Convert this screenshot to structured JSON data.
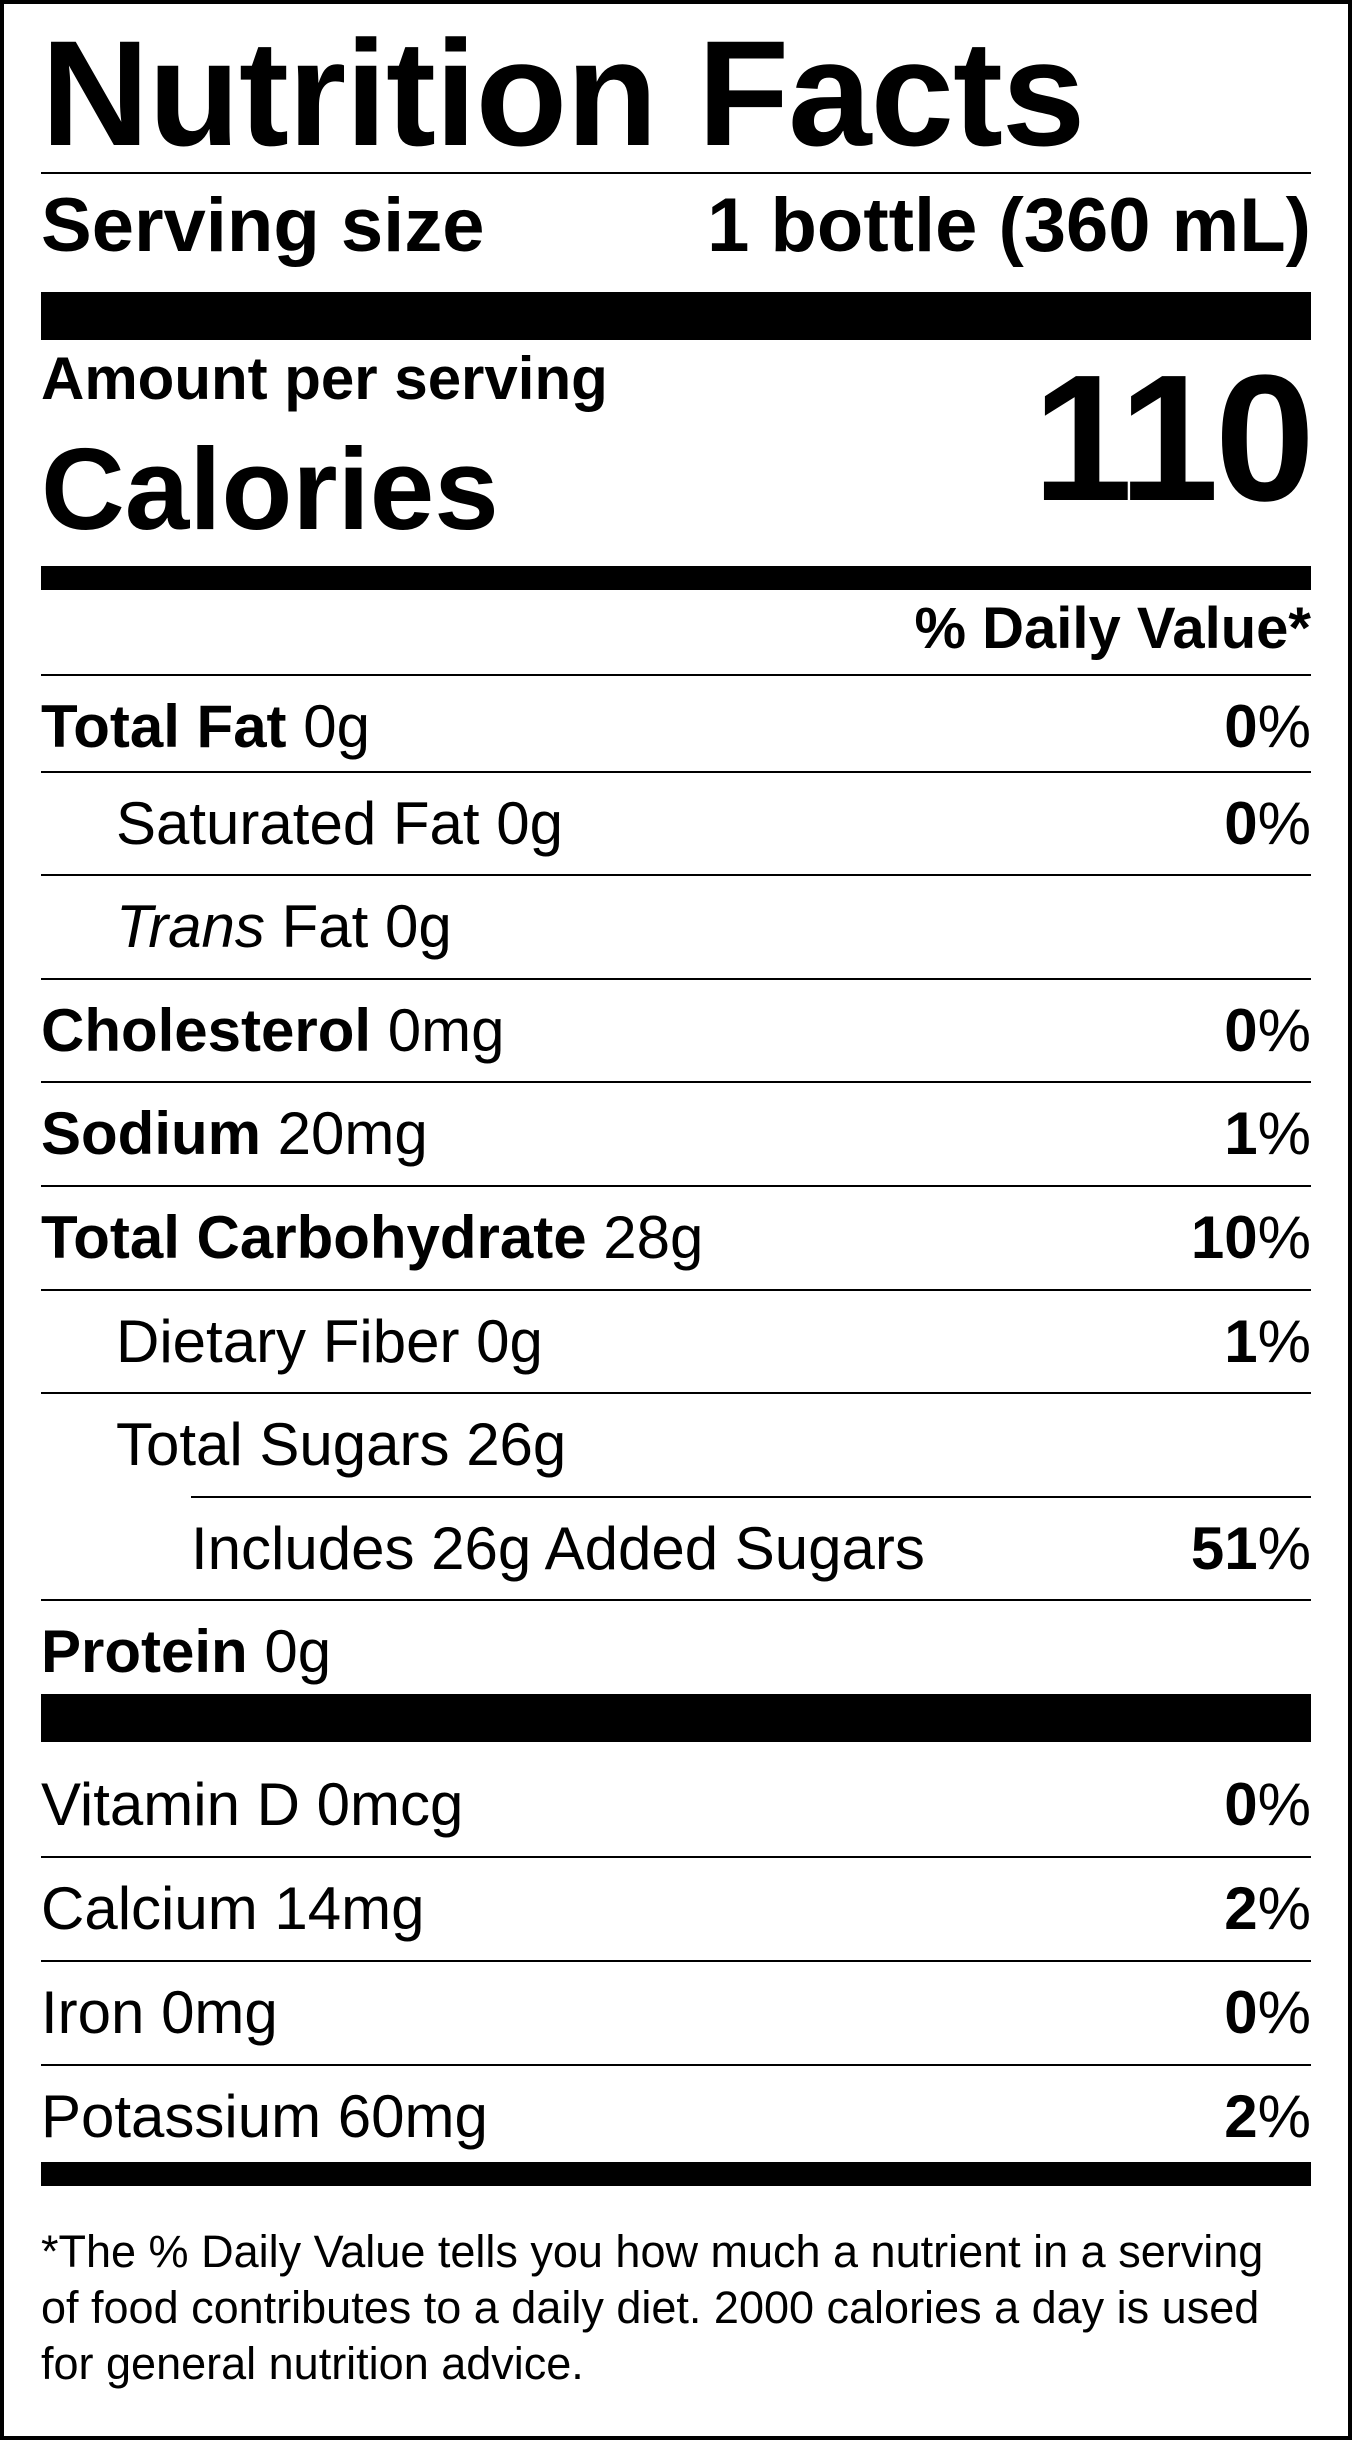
{
  "title": "Nutrition Facts",
  "serving": {
    "label": "Serving size",
    "value": "1 bottle (360 mL)"
  },
  "amount_per_serving": "Amount per serving",
  "calories": {
    "label": "Calories",
    "value": "110"
  },
  "dv_header": "% Daily Value*",
  "nutrients": [
    {
      "name": "Total Fat",
      "amount": "0g",
      "dv": "0"
    },
    {
      "name": "Saturated Fat",
      "amount": "0g",
      "dv": "0"
    },
    {
      "name": "Trans",
      "name_rest": "Fat",
      "amount": "0g",
      "dv": ""
    },
    {
      "name": "Cholesterol",
      "amount": "0mg",
      "dv": "0"
    },
    {
      "name": "Sodium",
      "amount": "20mg",
      "dv": "1"
    },
    {
      "name": "Total Carbohydrate",
      "amount": "28g",
      "dv": "10"
    },
    {
      "name": "Dietary Fiber",
      "amount": "0g",
      "dv": "1"
    },
    {
      "name": "Total Sugars",
      "amount": "26g",
      "dv": ""
    },
    {
      "name": "Includes 26g Added Sugars",
      "amount": "",
      "dv": "51"
    },
    {
      "name": "Protein",
      "amount": "0g",
      "dv": ""
    }
  ],
  "vitamins": [
    {
      "name": "Vitamin D",
      "amount": "0mcg",
      "dv": "0"
    },
    {
      "name": "Calcium",
      "amount": "14mg",
      "dv": "2"
    },
    {
      "name": "Iron",
      "amount": "0mg",
      "dv": "0"
    },
    {
      "name": "Potassium",
      "amount": "60mg",
      "dv": "2"
    }
  ],
  "percent_sign": "%",
  "footnote": "*The % Daily Value tells you how much a nutrient in a serving of food contributes to a daily diet. 2000 calories a day is used for general nutrition advice."
}
